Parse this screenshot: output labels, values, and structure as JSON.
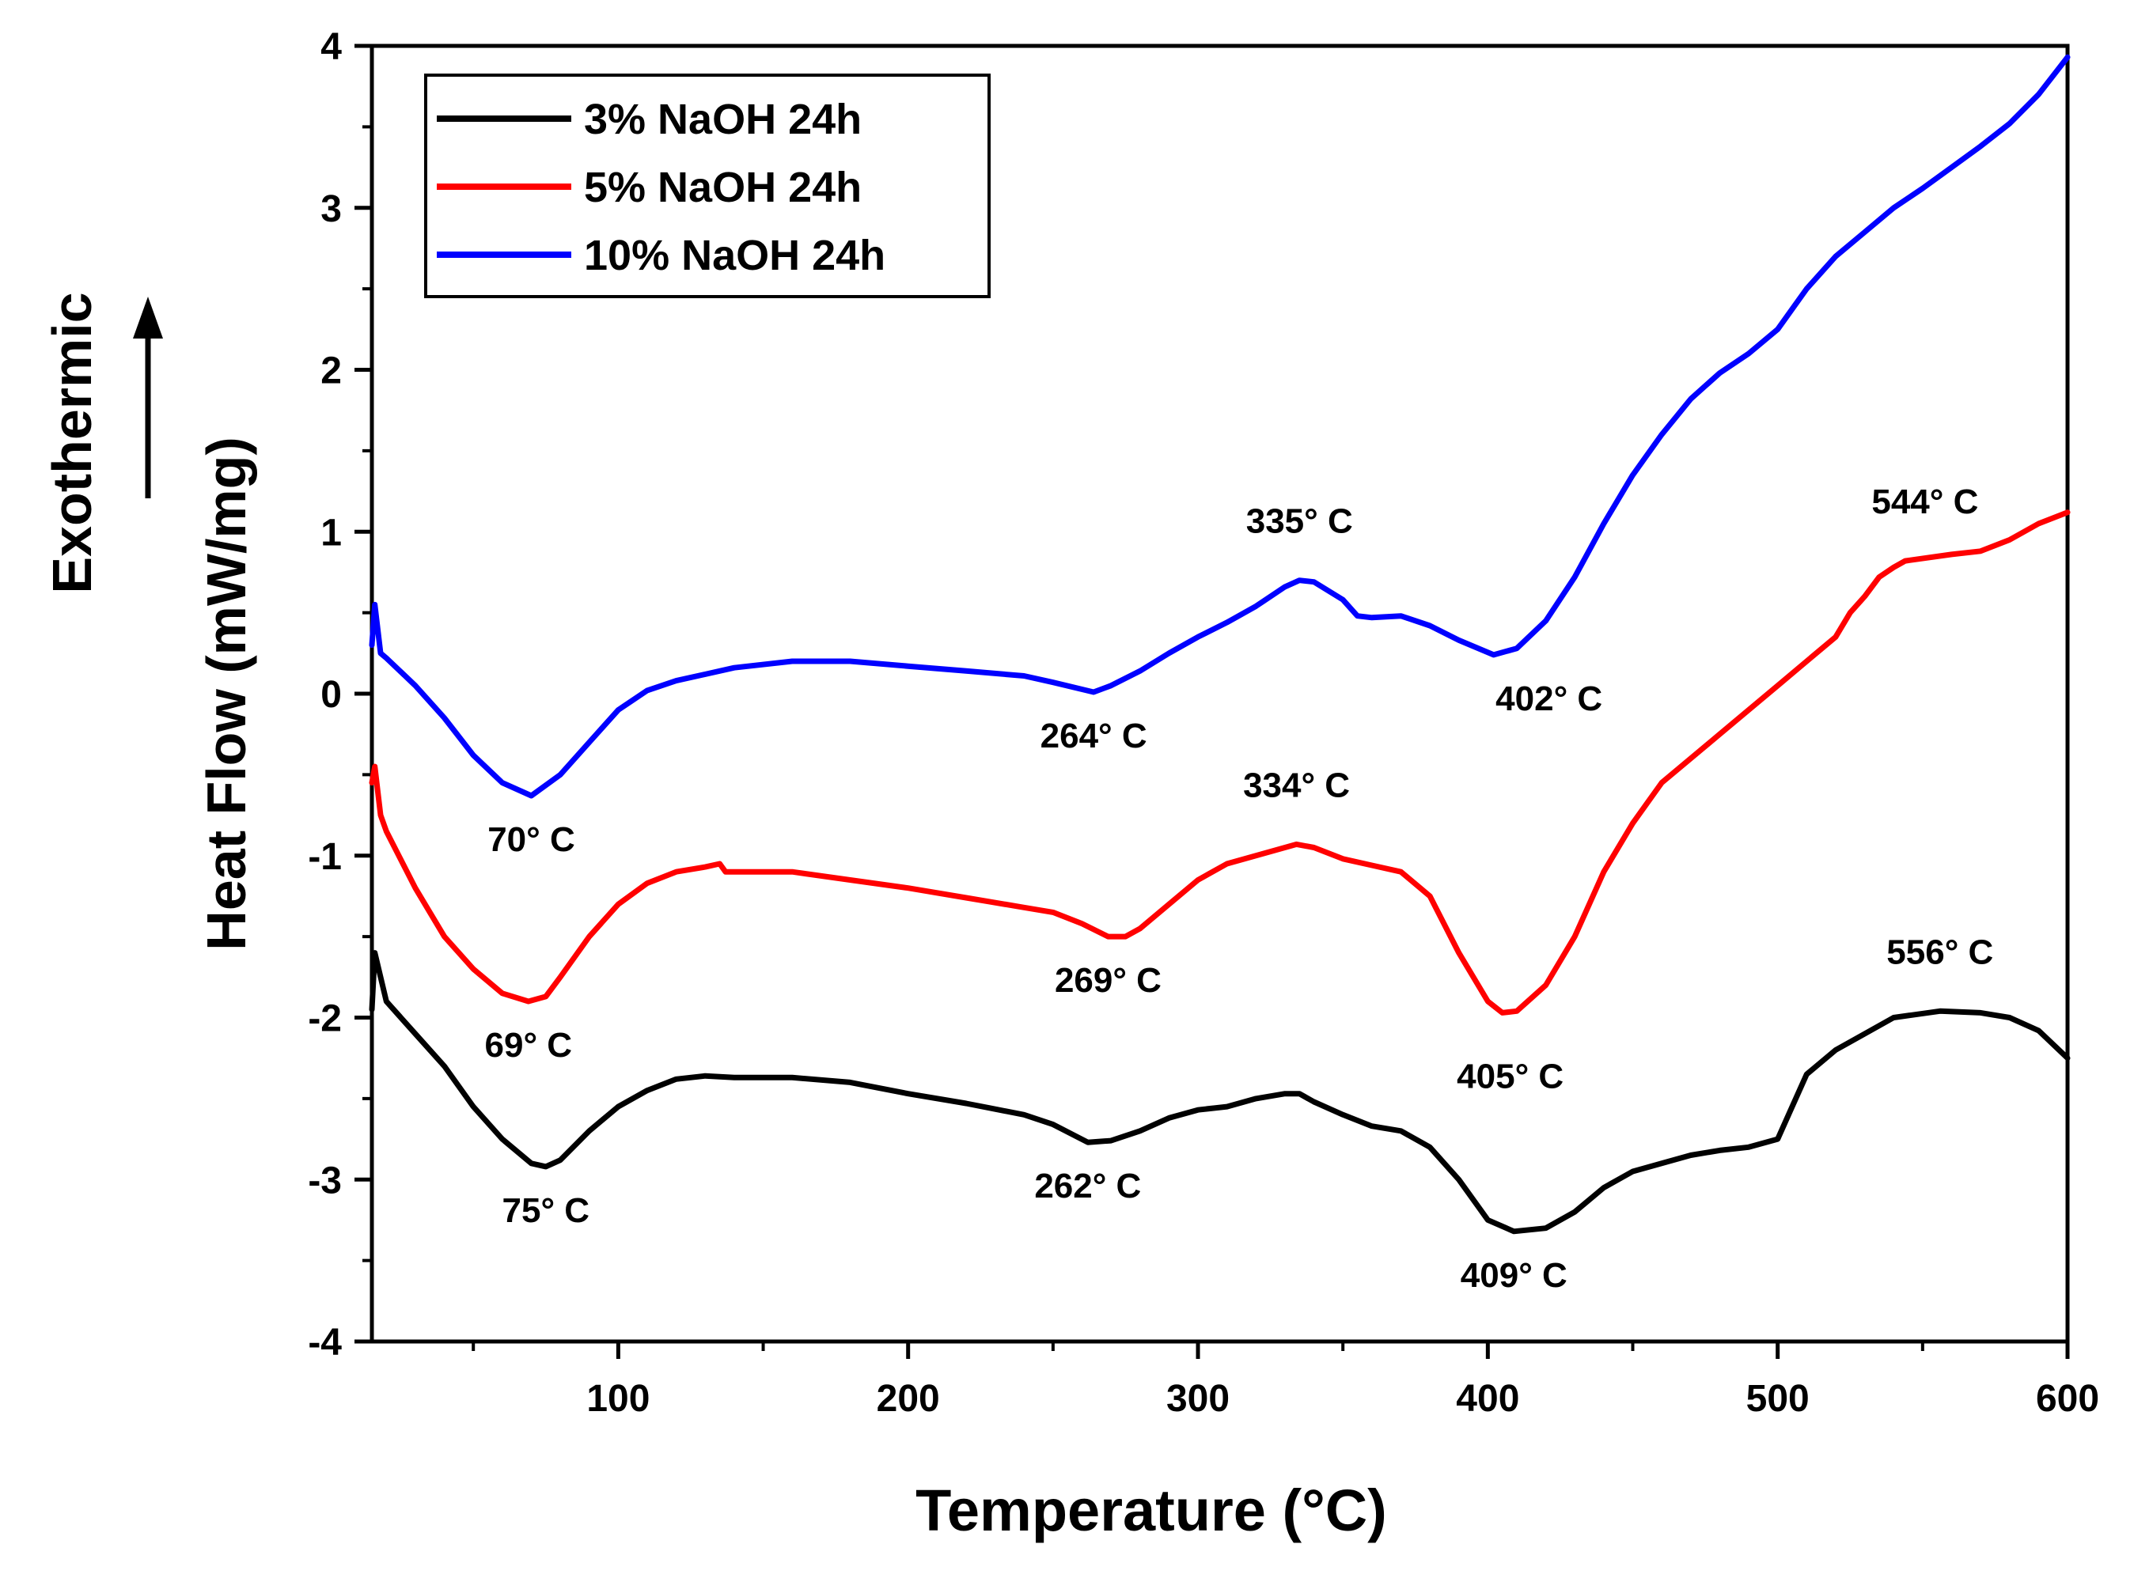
{
  "chart_data": {
    "type": "line",
    "title": "",
    "xlabel": "Temperature (°C)",
    "ylabel": "Heat Flow (mW/mg)",
    "side_label": "Exothermic",
    "xlim": [
      15,
      600
    ],
    "ylim": [
      -4,
      4
    ],
    "x_ticks": [
      100,
      200,
      300,
      400,
      500,
      600
    ],
    "y_ticks": [
      -4,
      -3,
      -2,
      -1,
      0,
      1,
      2,
      3,
      4
    ],
    "x_tick_labels": [
      "100",
      "200",
      "300",
      "400",
      "500",
      "600"
    ],
    "y_tick_labels": [
      "-4",
      "-3",
      "-2",
      "-1",
      "0",
      "1",
      "2",
      "3",
      "4"
    ],
    "legend_position": "top-left",
    "series": [
      {
        "name": "3% NaOH 24h",
        "color": "#000000",
        "x": [
          15,
          16,
          18,
          20,
          30,
          40,
          50,
          60,
          70,
          75,
          80,
          90,
          100,
          110,
          120,
          130,
          140,
          160,
          180,
          200,
          220,
          240,
          250,
          262,
          270,
          280,
          290,
          300,
          310,
          320,
          330,
          335,
          340,
          350,
          360,
          370,
          380,
          390,
          400,
          409,
          420,
          430,
          440,
          450,
          460,
          470,
          480,
          490,
          500,
          505,
          510,
          520,
          530,
          540,
          556,
          570,
          580,
          590,
          600
        ],
        "y": [
          -1.95,
          -1.6,
          -1.75,
          -1.9,
          -2.1,
          -2.3,
          -2.55,
          -2.75,
          -2.9,
          -2.92,
          -2.88,
          -2.7,
          -2.55,
          -2.45,
          -2.38,
          -2.36,
          -2.37,
          -2.37,
          -2.4,
          -2.47,
          -2.53,
          -2.6,
          -2.66,
          -2.77,
          -2.76,
          -2.7,
          -2.62,
          -2.57,
          -2.55,
          -2.5,
          -2.47,
          -2.47,
          -2.52,
          -2.6,
          -2.67,
          -2.7,
          -2.8,
          -3.0,
          -3.25,
          -3.32,
          -3.3,
          -3.2,
          -3.05,
          -2.95,
          -2.9,
          -2.85,
          -2.82,
          -2.8,
          -2.75,
          -2.55,
          -2.35,
          -2.2,
          -2.1,
          -2.0,
          -1.96,
          -1.97,
          -2.0,
          -2.08,
          -2.25
        ]
      },
      {
        "name": "5% NaOH 24h",
        "color": "#ff0000",
        "x": [
          15,
          16,
          18,
          20,
          30,
          40,
          50,
          60,
          69,
          75,
          80,
          90,
          100,
          110,
          120,
          130,
          135,
          137,
          140,
          160,
          180,
          200,
          220,
          240,
          250,
          260,
          269,
          275,
          280,
          290,
          300,
          310,
          320,
          334,
          340,
          350,
          360,
          370,
          380,
          390,
          400,
          405,
          410,
          420,
          430,
          440,
          450,
          460,
          480,
          500,
          510,
          520,
          525,
          530,
          535,
          540,
          544,
          560,
          570,
          580,
          590,
          600
        ],
        "y": [
          -0.55,
          -0.45,
          -0.75,
          -0.85,
          -1.2,
          -1.5,
          -1.7,
          -1.85,
          -1.9,
          -1.87,
          -1.75,
          -1.5,
          -1.3,
          -1.17,
          -1.1,
          -1.07,
          -1.05,
          -1.1,
          -1.1,
          -1.1,
          -1.15,
          -1.2,
          -1.26,
          -1.32,
          -1.35,
          -1.42,
          -1.5,
          -1.5,
          -1.45,
          -1.3,
          -1.15,
          -1.05,
          -1.0,
          -0.93,
          -0.95,
          -1.02,
          -1.06,
          -1.1,
          -1.25,
          -1.6,
          -1.9,
          -1.97,
          -1.96,
          -1.8,
          -1.5,
          -1.1,
          -0.8,
          -0.55,
          -0.25,
          0.05,
          0.2,
          0.35,
          0.5,
          0.6,
          0.72,
          0.78,
          0.82,
          0.86,
          0.88,
          0.95,
          1.05,
          1.12
        ]
      },
      {
        "name": "10% NaOH 24h",
        "color": "#0000ff",
        "x": [
          15,
          16,
          18,
          20,
          30,
          40,
          50,
          60,
          70,
          80,
          90,
          100,
          110,
          120,
          140,
          160,
          180,
          200,
          220,
          240,
          250,
          264,
          270,
          280,
          290,
          300,
          310,
          320,
          330,
          335,
          340,
          350,
          355,
          360,
          370,
          380,
          390,
          402,
          410,
          420,
          430,
          440,
          450,
          460,
          470,
          480,
          490,
          500,
          510,
          520,
          530,
          540,
          550,
          560,
          570,
          580,
          590,
          600
        ],
        "y": [
          0.3,
          0.55,
          0.25,
          0.22,
          0.05,
          -0.15,
          -0.38,
          -0.55,
          -0.63,
          -0.5,
          -0.3,
          -0.1,
          0.02,
          0.08,
          0.16,
          0.2,
          0.2,
          0.17,
          0.14,
          0.11,
          0.07,
          0.01,
          0.05,
          0.14,
          0.25,
          0.35,
          0.44,
          0.54,
          0.66,
          0.7,
          0.69,
          0.58,
          0.48,
          0.47,
          0.48,
          0.42,
          0.33,
          0.24,
          0.28,
          0.45,
          0.72,
          1.05,
          1.35,
          1.6,
          1.82,
          1.98,
          2.1,
          2.25,
          2.5,
          2.7,
          2.85,
          3.0,
          3.12,
          3.25,
          3.38,
          3.52,
          3.7,
          3.93
        ]
      }
    ],
    "annotations": [
      {
        "text": "335° C",
        "x": 335,
        "y": 0.7,
        "anchor": "above"
      },
      {
        "text": "70° C",
        "x": 70,
        "y": -0.63,
        "anchor": "below"
      },
      {
        "text": "264° C",
        "x": 264,
        "y": 0.01,
        "anchor": "below"
      },
      {
        "text": "402° C",
        "x": 402,
        "y": 0.24,
        "anchor": "below-right"
      },
      {
        "text": "544° C",
        "x": 544,
        "y": 0.82,
        "anchor": "above-far"
      },
      {
        "text": "334° C",
        "x": 334,
        "y": -0.93,
        "anchor": "above"
      },
      {
        "text": "69° C",
        "x": 69,
        "y": -1.9,
        "anchor": "below"
      },
      {
        "text": "269° C",
        "x": 269,
        "y": -1.5,
        "anchor": "below"
      },
      {
        "text": "405° C",
        "x": 405,
        "y": -1.97,
        "anchor": "below-far"
      },
      {
        "text": "556° C",
        "x": 556,
        "y": -1.96,
        "anchor": "above"
      },
      {
        "text": "75° C",
        "x": 75,
        "y": -2.92,
        "anchor": "below"
      },
      {
        "text": "262° C",
        "x": 262,
        "y": -2.77,
        "anchor": "below"
      },
      {
        "text": "409° C",
        "x": 409,
        "y": -3.32,
        "anchor": "below"
      }
    ]
  }
}
